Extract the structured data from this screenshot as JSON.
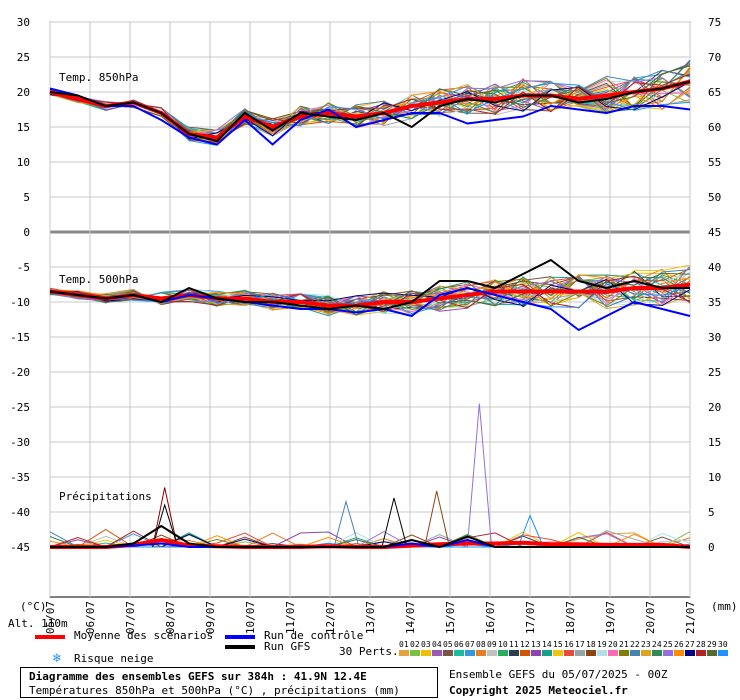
{
  "chart_data": {
    "type": "line",
    "title": "Diagramme des ensembles GEFS sur 384h : 41.9N 12.4E",
    "subtitle": "Températures 850hPa et 500hPa (°C) , précipitations (mm)",
    "x_tick_labels": [
      "05/07",
      "06/07",
      "07/07",
      "08/07",
      "09/07",
      "10/07",
      "11/07",
      "12/07",
      "13/07",
      "14/07",
      "15/07",
      "16/07",
      "17/07",
      "18/07",
      "19/07",
      "20/07",
      "21/07"
    ],
    "left_axis": {
      "label": "(°C)",
      "ticks": [
        30,
        25,
        20,
        15,
        10,
        5,
        0,
        -5,
        -10,
        -15,
        -20,
        -25,
        -30,
        -35,
        -40,
        -45
      ],
      "ylim": [
        -45,
        30
      ]
    },
    "right_axis": {
      "label": "(mm)",
      "ticks": [
        75,
        70,
        65,
        60,
        55,
        50,
        45,
        40,
        35,
        30,
        25,
        20,
        15,
        10,
        5,
        0
      ],
      "ylim": [
        0,
        75
      ]
    },
    "panel_labels": [
      "Temp. 850hPa",
      "Temp. 500hPa",
      "Précipitations"
    ],
    "altitude_label": "Alt. 110m",
    "grid": true,
    "series": [
      {
        "name": "Moyenne des scénarios",
        "panel": "850",
        "color": "#ff0000",
        "values": [
          20,
          19,
          18,
          18.5,
          17,
          14,
          13.5,
          16.5,
          15,
          16.5,
          17,
          16.5,
          17,
          18,
          18.5,
          19,
          19,
          19.5,
          19.5,
          19,
          19.5,
          20,
          20.5,
          21.5
        ]
      },
      {
        "name": "Run de contrôle",
        "panel": "850",
        "color": "#0000ff",
        "values": [
          20.5,
          19.5,
          18,
          18,
          16,
          13.5,
          12.5,
          16,
          12.5,
          16,
          17.5,
          15,
          16,
          17,
          17,
          15.5,
          16,
          16.5,
          18,
          17.5,
          17,
          18,
          18,
          17.5
        ]
      },
      {
        "name": "Run GFS",
        "panel": "850",
        "color": "#000000",
        "values": [
          20,
          19.5,
          18,
          18.5,
          17,
          14,
          13,
          17,
          14.5,
          17,
          16.5,
          16,
          17,
          15,
          18,
          19,
          18.5,
          19.5,
          19.5,
          18.5,
          19,
          20,
          20.5,
          21.5
        ]
      },
      {
        "name": "Moyenne des scénarios",
        "panel": "500",
        "color": "#ff0000",
        "values": [
          -8.5,
          -9,
          -9.5,
          -9,
          -9.5,
          -9,
          -9.5,
          -9.5,
          -10,
          -10,
          -10.5,
          -10.5,
          -10,
          -10,
          -9.5,
          -9,
          -8.5,
          -8.5,
          -8.5,
          -8.5,
          -8.5,
          -8,
          -8,
          -7.5
        ]
      },
      {
        "name": "Run de contrôle",
        "panel": "500",
        "color": "#0000ff",
        "values": [
          -8.5,
          -9,
          -9.5,
          -9,
          -10,
          -9,
          -9.5,
          -10,
          -10.5,
          -11,
          -11,
          -11.5,
          -11,
          -12,
          -9,
          -8,
          -9,
          -10,
          -11,
          -14,
          -12,
          -10,
          -11,
          -12
        ]
      },
      {
        "name": "Run GFS",
        "panel": "500",
        "color": "#000000",
        "values": [
          -8.5,
          -9,
          -9.5,
          -9,
          -10,
          -8,
          -9.5,
          -10,
          -10,
          -10.5,
          -11,
          -10.5,
          -11,
          -10,
          -7,
          -7,
          -8,
          -6,
          -4,
          -7,
          -8,
          -7,
          -8,
          -8
        ]
      },
      {
        "name": "Moyenne des scénarios",
        "panel": "precip",
        "color": "#ff0000",
        "values": [
          0,
          0,
          0,
          0.3,
          1,
          0.2,
          0.1,
          0,
          0,
          0,
          0.1,
          0,
          0,
          0.2,
          0.4,
          0.5,
          0.5,
          0.6,
          0.4,
          0.4,
          0.3,
          0.3,
          0.3,
          0
        ]
      },
      {
        "name": "Run de contrôle",
        "panel": "precip",
        "color": "#0000ff",
        "values": [
          0,
          0,
          0,
          0.2,
          0.5,
          0,
          0,
          0,
          0,
          0,
          0,
          0,
          0,
          0.5,
          0,
          1,
          0,
          0,
          0,
          0,
          0,
          0,
          0,
          0
        ]
      },
      {
        "name": "Run GFS",
        "panel": "precip",
        "color": "#000000",
        "values": [
          0,
          0,
          0,
          0.5,
          3,
          0.5,
          0,
          0,
          0,
          0,
          0,
          0,
          0,
          1,
          0,
          1.5,
          0,
          0,
          0,
          0,
          0,
          0,
          0,
          0
        ]
      }
    ],
    "precip_peaks": [
      {
        "date_index": 4.3,
        "value": 8.5,
        "color": "#8b0000"
      },
      {
        "date_index": 4.3,
        "value": 6,
        "color": "#000000"
      },
      {
        "date_index": 11.1,
        "value": 6.5,
        "color": "#4682b4"
      },
      {
        "date_index": 12.9,
        "value": 7,
        "color": "#000000"
      },
      {
        "date_index": 14.5,
        "value": 8,
        "color": "#8b4513"
      },
      {
        "date_index": 16.1,
        "value": 20.5,
        "color": "#9370db"
      },
      {
        "date_index": 18,
        "value": 4.5,
        "color": "#1e90ff"
      }
    ]
  },
  "legend": {
    "mean": "Moyenne des scénarios",
    "control": "Run de contrôle",
    "gfs": "Run GFS",
    "snow": "Risque neige",
    "perts": "30 Perts.",
    "colors": {
      "mean": "#ff0000",
      "control": "#0000ff",
      "gfs": "#000000",
      "snow": "#1e90ff"
    }
  },
  "perturbation_numbers": [
    "01",
    "02",
    "03",
    "04",
    "05",
    "06",
    "07",
    "08",
    "09",
    "10",
    "11",
    "12",
    "13",
    "14",
    "15",
    "16",
    "17",
    "18",
    "19",
    "20",
    "21",
    "22",
    "23",
    "24",
    "25",
    "26",
    "27",
    "28",
    "29",
    "30"
  ],
  "perturbation_colors": [
    "#e6a23c",
    "#7ac143",
    "#f0c000",
    "#9b59b6",
    "#795548",
    "#1abc9c",
    "#3498db",
    "#e67e22",
    "#c0c0c0",
    "#27ae60",
    "#2c3e50",
    "#d35400",
    "#8e44ad",
    "#16a085",
    "#f1c40f",
    "#e74c3c",
    "#95a5a6",
    "#8b4513",
    "#b0e0e6",
    "#ff69b4",
    "#808000",
    "#4682b4",
    "#daa520",
    "#2e8b57",
    "#9370db",
    "#ff8c00",
    "#000080",
    "#b22222",
    "#556b2f",
    "#1e90ff"
  ],
  "info": {
    "title": "Diagramme des ensembles GEFS sur 384h : 41.9N 12.4E",
    "subtitle": "Températures 850hPa et 500hPa (°C) , précipitations (mm)",
    "run": "Ensemble GEFS du 05/07/2025 - 00Z",
    "copyright": "Copyright 2025 Meteociel.fr"
  }
}
